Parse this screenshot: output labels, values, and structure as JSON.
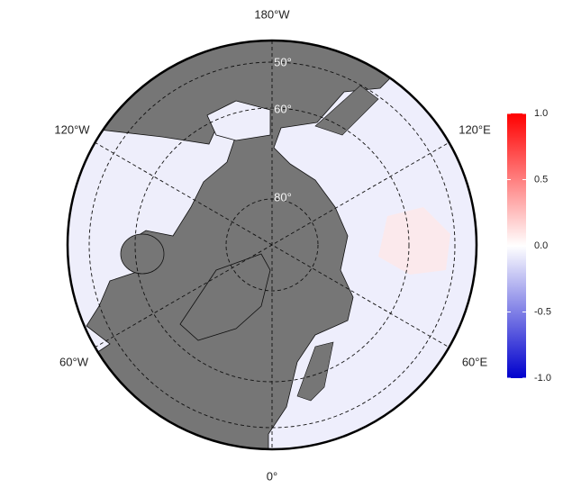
{
  "map": {
    "longitude_labels": [
      "180°W",
      "120°W",
      "120°E",
      "60°W",
      "60°E",
      "0°"
    ],
    "latitude_labels": [
      "50°",
      "60°",
      "80°"
    ],
    "colorbar": {
      "lim": [
        -1,
        1
      ],
      "ticks": [
        {
          "value": 1,
          "label": "1.0"
        },
        {
          "value": 0.5,
          "label": "0.5"
        },
        {
          "value": 0,
          "label": "0.0"
        },
        {
          "value": -0.5,
          "label": "-0.5"
        },
        {
          "value": -1,
          "label": "-1.0"
        }
      ],
      "colors": [
        "#0000cd",
        "#ffffff",
        "#ff0000"
      ]
    }
  }
}
